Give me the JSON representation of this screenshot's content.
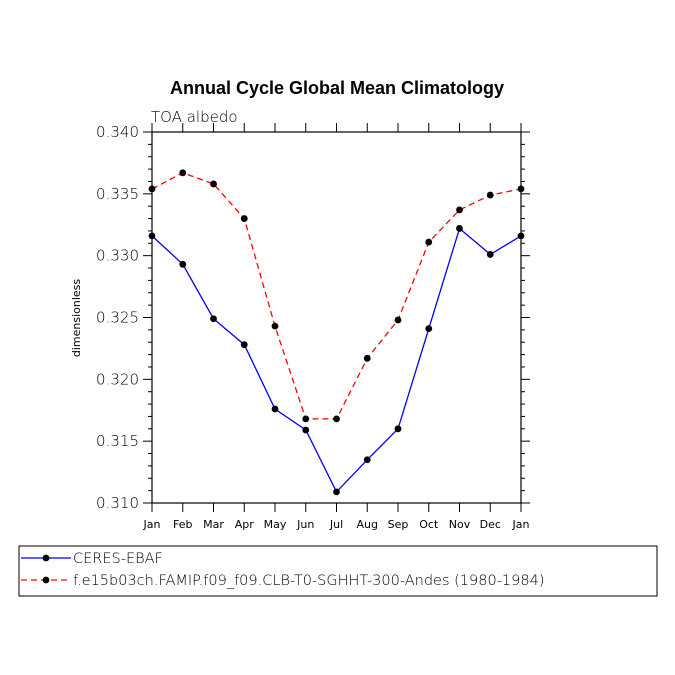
{
  "chart_data": {
    "type": "line",
    "title": "Annual Cycle Global Mean Climatology",
    "subtitle": "TOA albedo",
    "ylabel": "dimensionless",
    "xlabel": "",
    "ylim": [
      0.31,
      0.34
    ],
    "yticks": [
      "0.310",
      "0.315",
      "0.320",
      "0.325",
      "0.330",
      "0.335",
      "0.340"
    ],
    "categories": [
      "Jan",
      "Feb",
      "Mar",
      "Apr",
      "May",
      "Jun",
      "Jul",
      "Aug",
      "Sep",
      "Oct",
      "Nov",
      "Dec",
      "Jan"
    ],
    "grid": false,
    "legend_position": "bottom",
    "series": [
      {
        "name": "CERES-EBAF",
        "color": "#0000ff",
        "dash": "solid",
        "values": [
          0.3316,
          0.3293,
          0.3249,
          0.3228,
          0.3176,
          0.3159,
          0.3109,
          0.3135,
          0.316,
          0.3241,
          0.3322,
          0.3301,
          0.3316
        ]
      },
      {
        "name": "f.e15b03ch.FAMIP.f09_f09.CLB-T0-SGHHT-300-Andes (1980-1984)",
        "color": "#ff0000",
        "dash": "dashed",
        "values": [
          0.3354,
          0.3367,
          0.3358,
          0.333,
          0.3243,
          0.3168,
          0.3168,
          0.3217,
          0.3248,
          0.3311,
          0.3337,
          0.3349,
          0.3354
        ]
      }
    ]
  }
}
